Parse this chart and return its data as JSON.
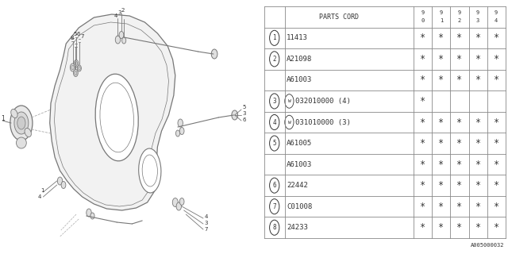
{
  "footer": "A005000032",
  "rows": [
    {
      "num": "1",
      "part": "11413",
      "marks": [
        true,
        true,
        true,
        true,
        true
      ]
    },
    {
      "num": "2",
      "part": "A21098",
      "marks": [
        true,
        true,
        true,
        true,
        true
      ]
    },
    {
      "num": "",
      "part": "A61003",
      "marks": [
        true,
        true,
        true,
        true,
        true
      ]
    },
    {
      "num": "3",
      "part": "W032010000 (4)",
      "marks": [
        true,
        false,
        false,
        false,
        false
      ]
    },
    {
      "num": "4",
      "part": "W031010000 (3)",
      "marks": [
        true,
        true,
        true,
        true,
        true
      ]
    },
    {
      "num": "5",
      "part": "A61005",
      "marks": [
        true,
        true,
        true,
        true,
        true
      ]
    },
    {
      "num": "",
      "part": "A61003",
      "marks": [
        true,
        true,
        true,
        true,
        true
      ]
    },
    {
      "num": "6",
      "part": "22442",
      "marks": [
        true,
        true,
        true,
        true,
        true
      ]
    },
    {
      "num": "7",
      "part": "C01008",
      "marks": [
        true,
        true,
        true,
        true,
        true
      ]
    },
    {
      "num": "8",
      "part": "24233",
      "marks": [
        true,
        true,
        true,
        true,
        true
      ]
    }
  ],
  "bg_color": "#ffffff",
  "line_color": "#888888",
  "text_color": "#333333"
}
